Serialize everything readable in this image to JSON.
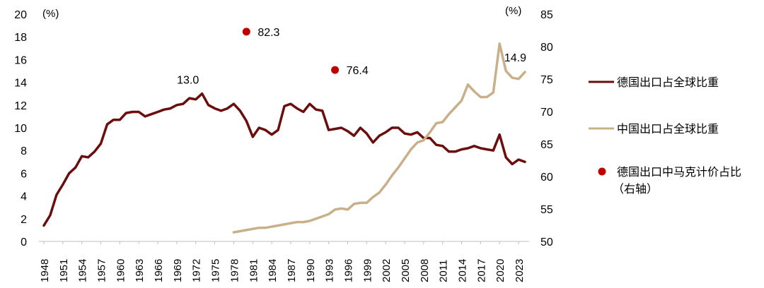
{
  "chart_data": {
    "type": "line",
    "title": "",
    "xlabel": "",
    "y_left_unit": "(%)",
    "y_right_unit": "(%)",
    "ylim_left": [
      0,
      20
    ],
    "ylim_right": [
      50,
      85
    ],
    "yticks_left": [
      0,
      2,
      4,
      6,
      8,
      10,
      12,
      14,
      16,
      18,
      20
    ],
    "yticks_right": [
      50,
      55,
      60,
      65,
      70,
      75,
      80,
      85
    ],
    "x_tick_labels": [
      "1948",
      "1951",
      "1954",
      "1957",
      "1960",
      "1963",
      "1966",
      "1969",
      "1972",
      "1975",
      "1978",
      "1981",
      "1984",
      "1987",
      "1990",
      "1993",
      "1996",
      "1999",
      "2002",
      "2005",
      "2008",
      "2011",
      "2014",
      "2017",
      "2020",
      "2023"
    ],
    "series": [
      {
        "name": "德国出口占全球比重",
        "axis": "left",
        "color": "#6b0d0d",
        "x": [
          1948,
          1949,
          1950,
          1951,
          1952,
          1953,
          1954,
          1955,
          1956,
          1957,
          1958,
          1959,
          1960,
          1961,
          1962,
          1963,
          1964,
          1965,
          1966,
          1967,
          1968,
          1969,
          1970,
          1971,
          1972,
          1973,
          1974,
          1975,
          1976,
          1977,
          1978,
          1979,
          1980,
          1981,
          1982,
          1983,
          1984,
          1985,
          1986,
          1987,
          1988,
          1989,
          1990,
          1991,
          1992,
          1993,
          1994,
          1995,
          1996,
          1997,
          1998,
          1999,
          2000,
          2001,
          2002,
          2003,
          2004,
          2005,
          2006,
          2007,
          2008,
          2009,
          2010,
          2011,
          2012,
          2013,
          2014,
          2015,
          2016,
          2017,
          2018,
          2019,
          2020,
          2021,
          2022,
          2023,
          2024
        ],
        "values": [
          1.4,
          2.3,
          4.1,
          5.0,
          6.0,
          6.5,
          7.5,
          7.4,
          7.9,
          8.6,
          10.3,
          10.7,
          10.7,
          11.3,
          11.4,
          11.4,
          11.0,
          11.2,
          11.4,
          11.6,
          11.7,
          12.0,
          12.1,
          12.6,
          12.5,
          13.0,
          12.0,
          11.7,
          11.5,
          11.7,
          12.1,
          11.5,
          10.6,
          9.2,
          10.0,
          9.8,
          9.4,
          9.8,
          11.9,
          12.1,
          11.7,
          11.4,
          12.1,
          11.6,
          11.5,
          9.8,
          9.9,
          10.0,
          9.7,
          9.3,
          10.0,
          9.5,
          8.7,
          9.3,
          9.6,
          10.0,
          10.0,
          9.5,
          9.4,
          9.6,
          9.1,
          9.1,
          8.5,
          8.4,
          7.9,
          7.9,
          8.1,
          8.2,
          8.4,
          8.2,
          8.1,
          8.0,
          9.4,
          7.4,
          6.8,
          7.2,
          7.0
        ]
      },
      {
        "name": "中国出口占全球比重",
        "axis": "left",
        "color": "#c9b08a",
        "x": [
          1978,
          1979,
          1980,
          1981,
          1982,
          1983,
          1984,
          1985,
          1986,
          1987,
          1988,
          1989,
          1990,
          1991,
          1992,
          1993,
          1994,
          1995,
          1996,
          1997,
          1998,
          1999,
          2000,
          2001,
          2002,
          2003,
          2004,
          2005,
          2006,
          2007,
          2008,
          2009,
          2010,
          2011,
          2012,
          2013,
          2014,
          2015,
          2016,
          2017,
          2018,
          2019,
          2020,
          2021,
          2022,
          2023,
          2024
        ],
        "values": [
          0.8,
          0.9,
          1.0,
          1.1,
          1.2,
          1.2,
          1.3,
          1.4,
          1.5,
          1.6,
          1.7,
          1.7,
          1.8,
          2.0,
          2.2,
          2.4,
          2.8,
          2.9,
          2.8,
          3.3,
          3.4,
          3.4,
          3.9,
          4.3,
          5.0,
          5.8,
          6.5,
          7.3,
          8.1,
          8.7,
          8.9,
          9.6,
          10.4,
          10.5,
          11.2,
          11.8,
          12.4,
          13.8,
          13.2,
          12.7,
          12.7,
          13.1,
          17.4,
          15.0,
          14.4,
          14.3,
          14.9
        ]
      },
      {
        "name": "德国出口中马克计价占比（右轴）",
        "axis": "right",
        "type": "scatter",
        "color": "#c00000",
        "x": [
          1980,
          1994
        ],
        "values": [
          82.3,
          76.4
        ]
      }
    ],
    "annotations": [
      {
        "text": "13.0",
        "series": 0,
        "x": 1973
      },
      {
        "text": "14.9",
        "series": 1,
        "x": 2024
      },
      {
        "text": "82.3",
        "series": 2,
        "x": 1980
      },
      {
        "text": "76.4",
        "series": 2,
        "x": 1994
      }
    ],
    "legend": {
      "position": "right",
      "entries": [
        {
          "label": "德国出口占全球比重",
          "marker": "line",
          "color": "#6b0d0d"
        },
        {
          "label": "中国出口占全球比重",
          "marker": "line",
          "color": "#c9b08a"
        },
        {
          "label_line1": "德国出口中马克计价占比",
          "label_line2": "（右轴）",
          "marker": "dot",
          "color": "#c00000"
        }
      ]
    }
  }
}
